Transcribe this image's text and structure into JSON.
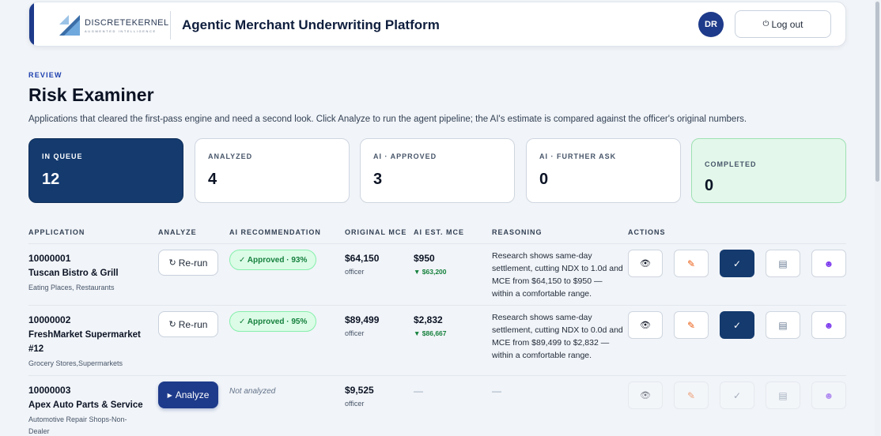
{
  "header": {
    "logo_name": "DISCRETEKERNEL",
    "logo_tag": "AUGMENTED INTELLIGENCE",
    "app_title": "Agentic Merchant Underwriting Platform",
    "avatar_initials": "DR",
    "logout_icon": "power-icon",
    "logout_label": "Log out"
  },
  "page": {
    "eyebrow": "REVIEW",
    "title": "Risk Examiner",
    "description": "Applications that cleared the first-pass engine and need a second look. Click Analyze to run the agent pipeline; the AI's estimate is compared against the officer's original numbers."
  },
  "stats": [
    {
      "label": "IN QUEUE",
      "value": "12"
    },
    {
      "label": "ANALYZED",
      "value": "4"
    },
    {
      "label": "AI · APPROVED",
      "value": "3"
    },
    {
      "label": "AI · FURTHER ASK",
      "value": "0"
    },
    {
      "label": "COMPLETED",
      "value": "0"
    }
  ],
  "table": {
    "headers": {
      "application": "APPLICATION",
      "analyze": "ANALYZE",
      "ai_recommendation": "AI RECOMMENDATION",
      "original_mce": "ORIGINAL MCE",
      "ai_est_mce": "AI EST. MCE",
      "reasoning": "REASONING",
      "actions": "ACTIONS"
    },
    "rows": [
      {
        "id": "10000001",
        "name": "Tuscan Bistro & Grill",
        "category": "Eating Places, Restaurants",
        "analyze_label": "Re-run",
        "recommendation": "✓ Approved · 93%",
        "original_mce": "$64,150",
        "original_sub": "officer",
        "ai_mce": "$950",
        "ai_delta": "▼ $63,200",
        "reasoning": "Research shows same-day settlement, cutting NDX to 1.0d and MCE from $64,150 to $950 — within a comfortable range."
      },
      {
        "id": "10000002",
        "name": "FreshMarket Supermarket #12",
        "category": "Grocery Stores,Supermarkets",
        "analyze_label": "Re-run",
        "recommendation": "✓ Approved · 95%",
        "original_mce": "$89,499",
        "original_sub": "officer",
        "ai_mce": "$2,832",
        "ai_delta": "▼ $86,667",
        "reasoning": "Research shows same-day settlement, cutting NDX to 0.0d and MCE from $89,499 to $2,832 — within a comfortable range."
      },
      {
        "id": "10000003",
        "name": "Apex Auto Parts & Service",
        "category": "Automotive Repair Shops-Non-Dealer",
        "analyze_label": "Analyze",
        "recommendation": "Not analyzed",
        "original_mce": "$9,525",
        "original_sub": "officer",
        "ai_mce": "—",
        "reasoning": "—"
      }
    ]
  },
  "icons": {
    "view": "eye-icon",
    "edit": "pencil-icon",
    "approve": "check-icon",
    "documents": "documents-icon",
    "assign": "user-icon"
  },
  "colors": {
    "primary": "#1e3a8a",
    "dark_card": "#143a6e",
    "approved_green": "#15803d",
    "completed_bg": "#e3f8ea"
  }
}
